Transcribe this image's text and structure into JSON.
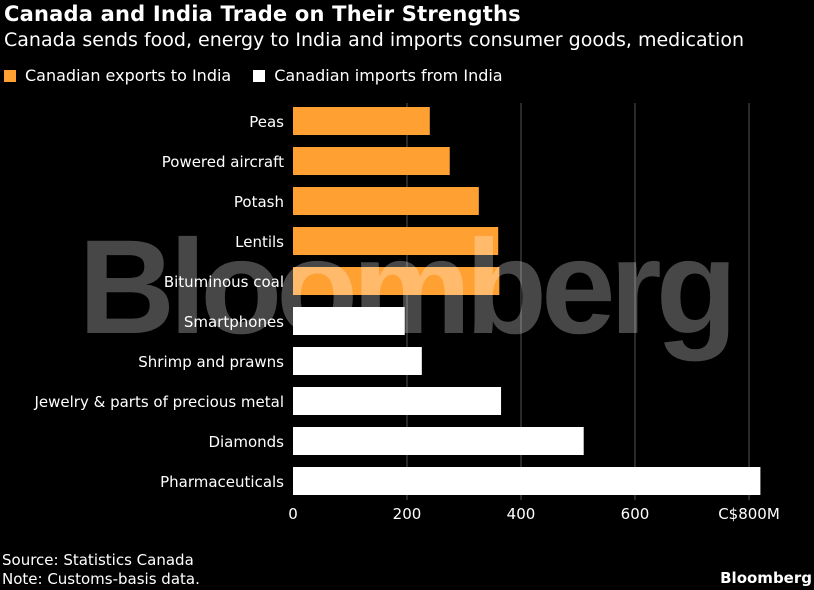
{
  "header": {
    "title": "Canada and India Trade on Their Strengths",
    "subtitle": "Canada sends food, energy to India and imports consumer goods, medication"
  },
  "footer": {
    "source": "Source: Statistics Canada",
    "note": "Note: Customs-basis data.",
    "brand": "Bloomberg"
  },
  "watermark": "Bloomberg",
  "colors": {
    "exports": "#ffa032",
    "imports": "#ffffff",
    "background": "#000000",
    "grid": "#555555"
  },
  "chart_data": {
    "type": "bar",
    "orientation": "horizontal",
    "title": "Canada and India Trade on Their Strengths",
    "subtitle": "Canada sends food, energy to India and imports consumer goods, medication",
    "categories": [
      "Peas",
      "Powered aircraft",
      "Potash",
      "Lentils",
      "Bituminous coal",
      "Smartphones",
      "Shrimp and prawns",
      "Jewelry & parts of precious metal",
      "Diamonds",
      "Pharmaceuticals"
    ],
    "series": [
      {
        "name": "Canadian exports to India",
        "color": "#ffa032",
        "values": [
          240,
          275,
          326,
          360,
          362,
          null,
          null,
          null,
          null,
          null
        ]
      },
      {
        "name": "Canadian imports from India",
        "color": "#ffffff",
        "values": [
          null,
          null,
          null,
          null,
          null,
          196,
          226,
          365,
          510,
          820
        ]
      }
    ],
    "x_ticks": [
      "0",
      "200",
      "400",
      "600",
      "C$800M"
    ],
    "x_tick_values": [
      0,
      200,
      400,
      600,
      800
    ],
    "xlim": [
      0,
      820
    ],
    "grid": true,
    "legend_position": "top-left"
  }
}
